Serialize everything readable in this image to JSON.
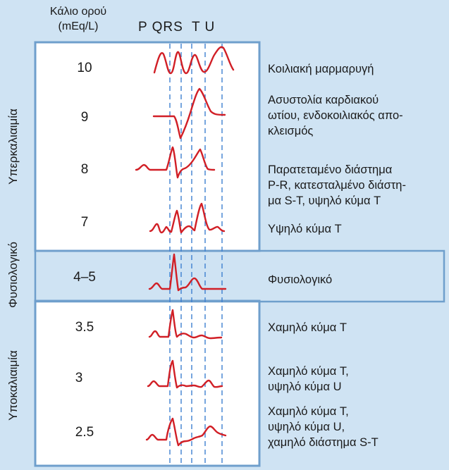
{
  "header": {
    "potassium_line1": "Κάλιο ορού",
    "potassium_line2": "(mEq/L)",
    "wave_labels": "P QRS  T U"
  },
  "groups": {
    "hyper": "Υπερκαλιαιμία",
    "normal": "Φυσιολογικό",
    "hypo": "Υποκαλιαιμία"
  },
  "rows": [
    {
      "value": "10",
      "description": "Κοιλιακή μαρμαρυγή"
    },
    {
      "value": "9",
      "description": "Ασυστολία καρδιακού\nωτίου, ενδοκοιλιακός απο-\nκλεισμός"
    },
    {
      "value": "8",
      "description": "Παρατεταμένο διάστημα\nP-R, κατεσταλμένο διάστη-\nμα S-T, υψηλό κύμα T"
    },
    {
      "value": "7",
      "description": "Υψηλό κύμα T"
    },
    {
      "value": "4–5",
      "description": "Φυσιολογικό"
    },
    {
      "value": "3.5",
      "description": "Χαμηλό κύμα T"
    },
    {
      "value": "3",
      "description": "Χαμηλό κύμα T,\nυψηλό κύμα U"
    },
    {
      "value": "2.5",
      "description": "Χαμηλό κύμα T,\nυψηλό κύμα U,\nχαμηλό διάστημα S-T"
    }
  ],
  "colors": {
    "background": "#cfe3f3",
    "panel": "#ffffff",
    "frame": "#6f9fcc",
    "waveform": "#d11f26",
    "guides": "#3d7fd0"
  }
}
